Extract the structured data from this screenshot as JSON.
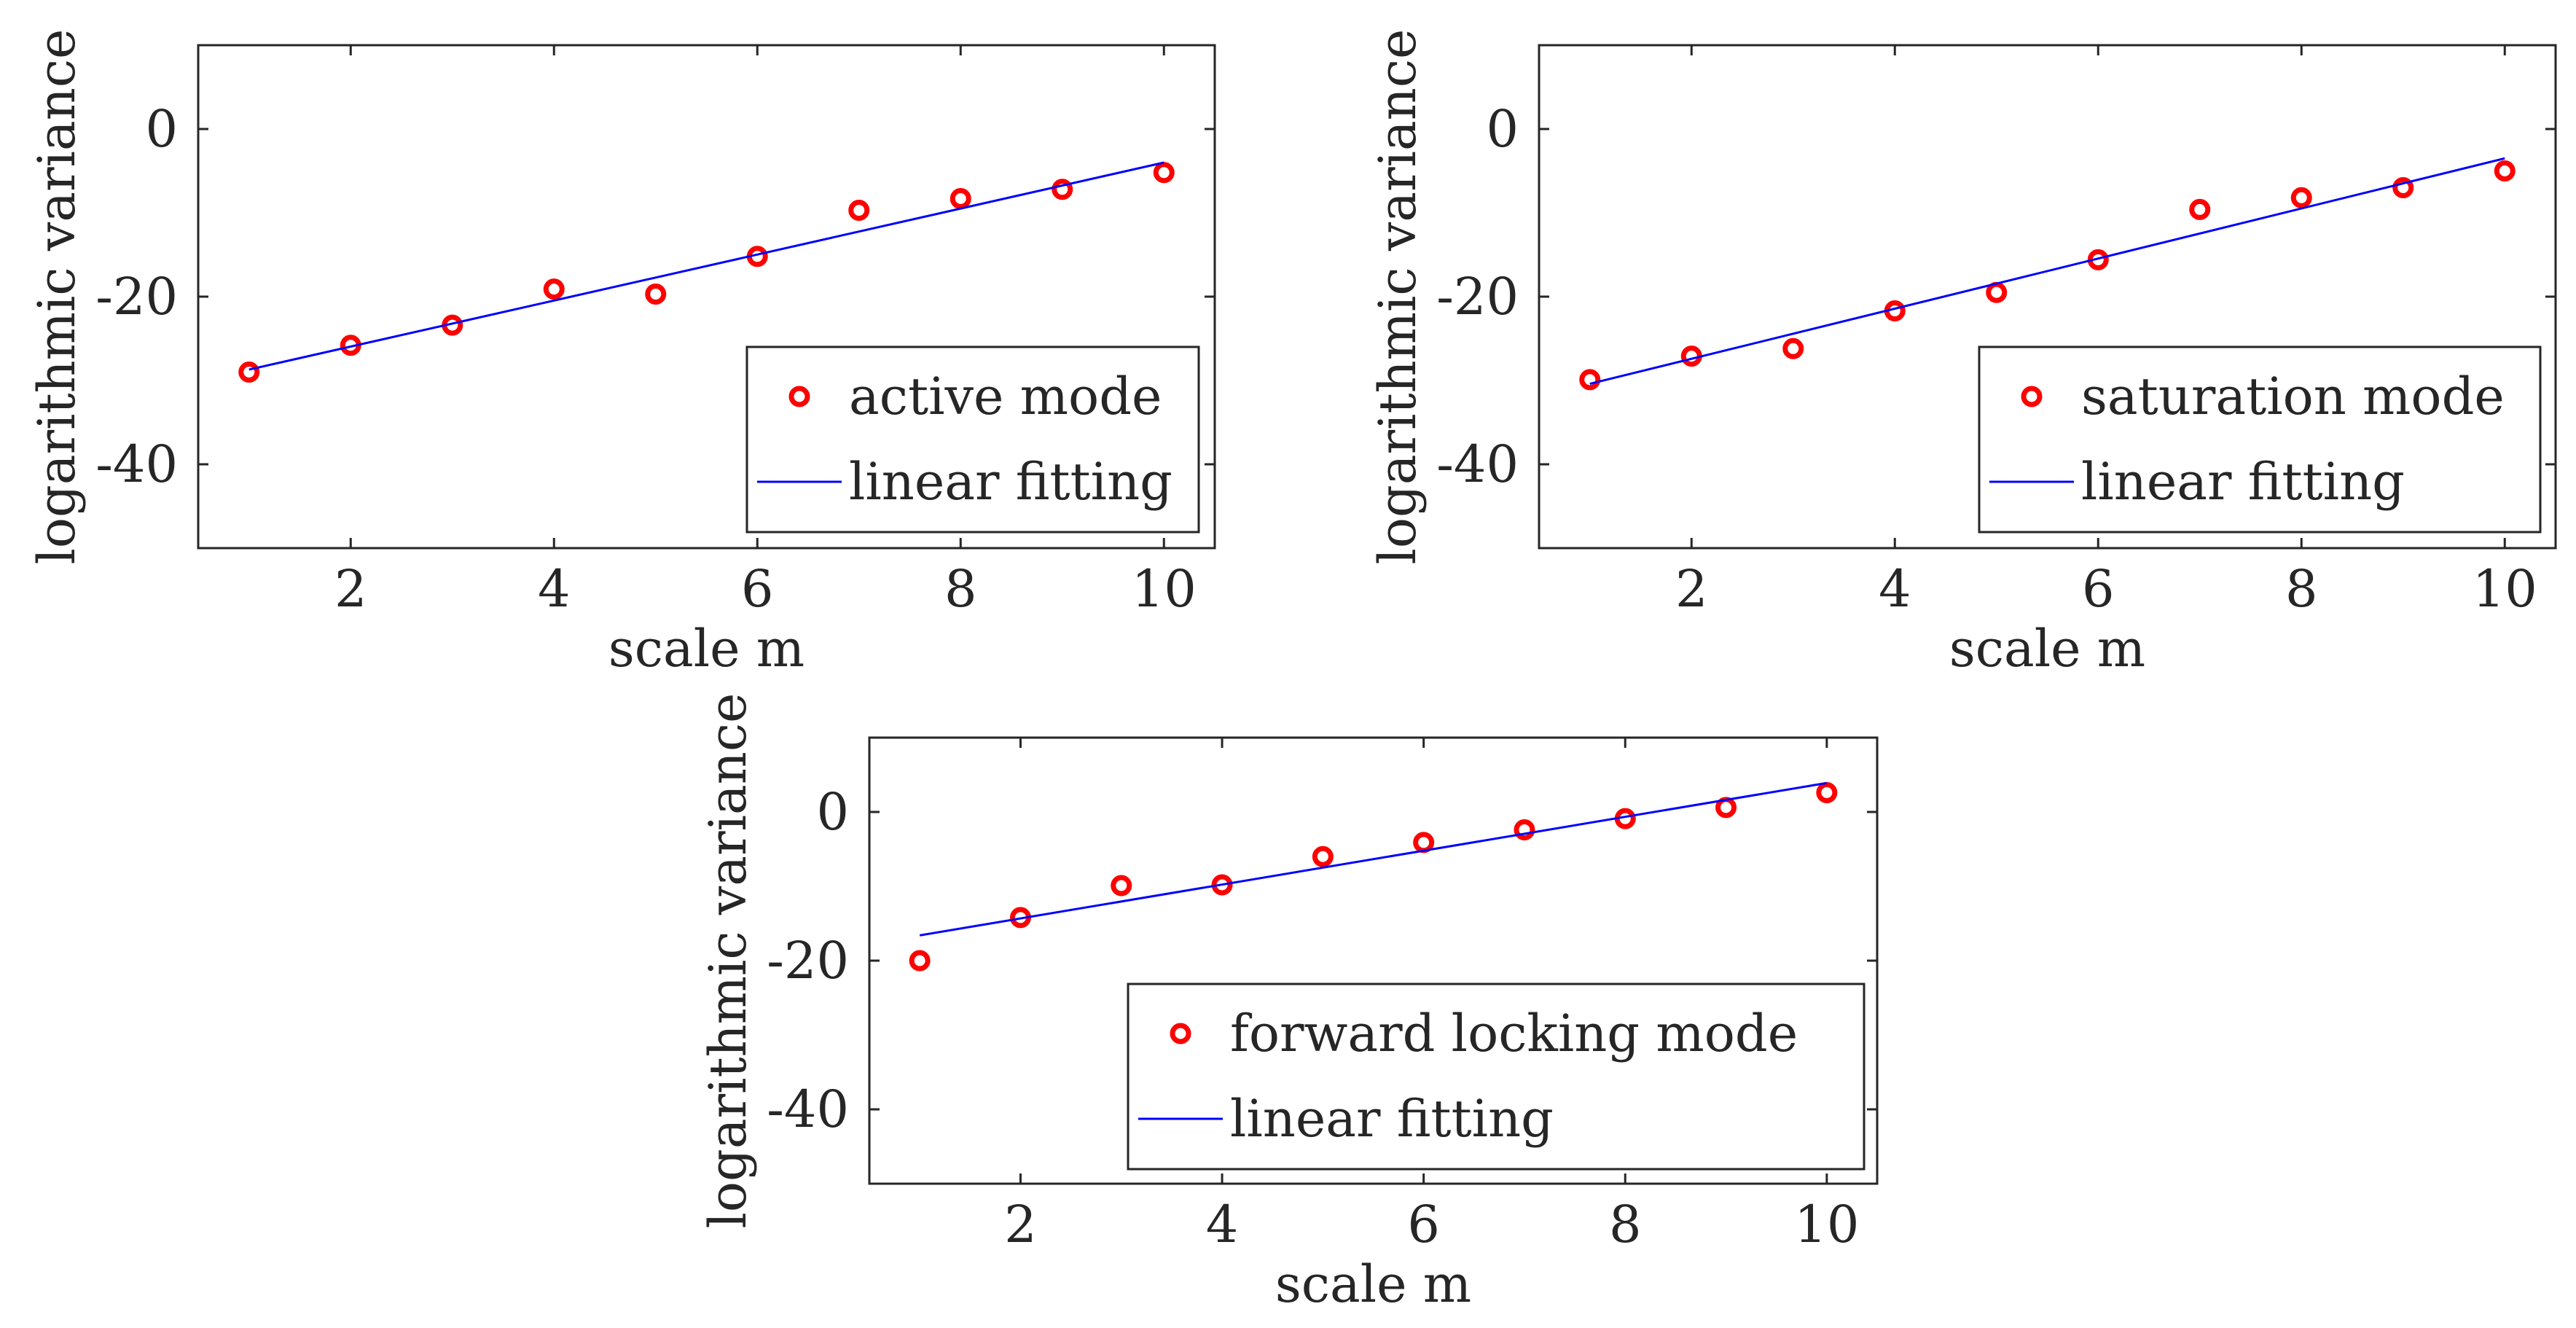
{
  "chart_data": [
    {
      "type": "scatter",
      "title": "",
      "xlabel": "scale m",
      "ylabel": "logarithmic variance",
      "xlim": [
        0.5,
        10.5
      ],
      "ylim": [
        -50,
        10
      ],
      "xticks": [
        2,
        4,
        6,
        8,
        10
      ],
      "yticks": [
        0,
        -20,
        -40
      ],
      "grid": false,
      "legend_position": "bottom-right",
      "series": [
        {
          "name": "active mode",
          "kind": "markers",
          "color": "#ff0000",
          "x": [
            1,
            2,
            3,
            4,
            5,
            6,
            7,
            8,
            9,
            10
          ],
          "y": [
            -29.0,
            -25.8,
            -23.4,
            -19.1,
            -19.7,
            -15.2,
            -9.7,
            -8.3,
            -7.2,
            -5.2
          ]
        },
        {
          "name": "linear fitting",
          "kind": "line",
          "color": "#0000ff",
          "x": [
            1,
            10
          ],
          "y": [
            -28.7,
            -4.0
          ]
        }
      ]
    },
    {
      "type": "scatter",
      "title": "",
      "xlabel": "scale m",
      "ylabel": "logarithmic variance",
      "xlim": [
        0.5,
        10.5
      ],
      "ylim": [
        -50,
        10
      ],
      "xticks": [
        2,
        4,
        6,
        8,
        10
      ],
      "yticks": [
        0,
        -20,
        -40
      ],
      "grid": false,
      "legend_position": "bottom-right",
      "series": [
        {
          "name": "saturation mode",
          "kind": "markers",
          "color": "#ff0000",
          "x": [
            1,
            2,
            3,
            4,
            5,
            6,
            7,
            8,
            9,
            10
          ],
          "y": [
            -29.9,
            -27.1,
            -26.2,
            -21.7,
            -19.5,
            -15.6,
            -9.6,
            -8.2,
            -7.0,
            -5.0
          ]
        },
        {
          "name": "linear fitting",
          "kind": "line",
          "color": "#0000ff",
          "x": [
            1,
            10
          ],
          "y": [
            -30.4,
            -3.5
          ]
        }
      ]
    },
    {
      "type": "scatter",
      "title": "",
      "xlabel": "scale m",
      "ylabel": "logarithmic variance",
      "xlim": [
        0.5,
        10.5
      ],
      "ylim": [
        -50,
        10
      ],
      "xticks": [
        2,
        4,
        6,
        8,
        10
      ],
      "yticks": [
        0,
        -20,
        -40
      ],
      "grid": false,
      "legend_position": "bottom-right",
      "series": [
        {
          "name": "forward locking mode",
          "kind": "markers",
          "color": "#ff0000",
          "x": [
            1,
            2,
            3,
            4,
            5,
            6,
            7,
            8,
            9,
            10
          ],
          "y": [
            -20.0,
            -14.2,
            -9.9,
            -9.8,
            -6.0,
            -4.1,
            -2.4,
            -0.9,
            0.6,
            2.6
          ]
        },
        {
          "name": "linear fitting",
          "kind": "line",
          "color": "#0000ff",
          "x": [
            1,
            10
          ],
          "y": [
            -16.6,
            3.9
          ]
        }
      ]
    }
  ]
}
